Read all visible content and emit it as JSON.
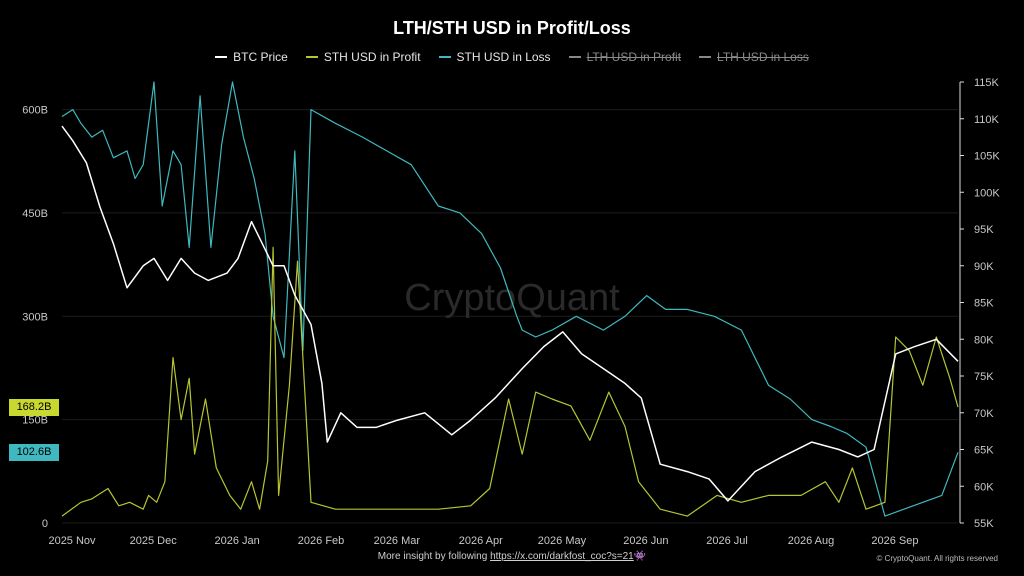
{
  "title": "LTH/STH USD in Profit/Loss",
  "legend": [
    {
      "label": "BTC Price",
      "color": "#ffffff",
      "active": true
    },
    {
      "label": "STH USD in Profit",
      "color": "#b7c531",
      "active": true
    },
    {
      "label": "STH USD in Loss",
      "color": "#3fb8bf",
      "active": true
    },
    {
      "label": "LTH USD in Profit",
      "color": "#888888",
      "active": false
    },
    {
      "label": "LTH USD in Loss",
      "color": "#888888",
      "active": false
    }
  ],
  "watermark": "CryptoQuant",
  "badges": {
    "sth_profit": {
      "text": "168.2B",
      "color": "#c9d82f"
    },
    "sth_loss": {
      "text": "102.6B",
      "color": "#3fb8bf"
    }
  },
  "footer": {
    "text": "More insight by following ",
    "link": "https://x.com/darkfost_coc?s=21",
    "emoji": "👾"
  },
  "copyright": "© CryptoQuant. All rights reserved",
  "chart_data": {
    "type": "line",
    "title": "LTH/STH USD in Profit/Loss",
    "x_ticks": [
      "2025 Nov",
      "2025 Dec",
      "2026 Jan",
      "2026 Feb",
      "2026 Mar",
      "2026 Apr",
      "2026 May",
      "2026 Jun",
      "2026 Jul",
      "2026 Aug",
      "2026 Sep"
    ],
    "x_range": [
      "2025-11-01",
      "2026-09-28"
    ],
    "left_axis": {
      "ticks": [
        "0",
        "150B",
        "300B",
        "450B",
        "600B"
      ],
      "tick_values": [
        0,
        150,
        300,
        450,
        600
      ],
      "range": [
        0,
        640
      ],
      "unit": "B USD"
    },
    "right_axis": {
      "ticks": [
        "55K",
        "60K",
        "65K",
        "70K",
        "75K",
        "80K",
        "85K",
        "90K",
        "95K",
        "100K",
        "105K",
        "110K",
        "115K"
      ],
      "tick_values": [
        55,
        60,
        65,
        70,
        75,
        80,
        85,
        90,
        95,
        100,
        105,
        110,
        115
      ],
      "range": [
        55,
        115
      ],
      "unit": "K USD"
    },
    "series": [
      {
        "name": "BTC Price",
        "axis": "right",
        "color": "#ffffff",
        "x": [
          "2025-11-01",
          "2025-11-05",
          "2025-11-10",
          "2025-11-15",
          "2025-11-20",
          "2025-11-25",
          "2025-12-01",
          "2025-12-05",
          "2025-12-10",
          "2025-12-15",
          "2025-12-20",
          "2025-12-25",
          "2026-01-01",
          "2026-01-05",
          "2026-01-10",
          "2026-01-14",
          "2026-01-18",
          "2026-01-22",
          "2026-01-26",
          "2026-02-01",
          "2026-02-05",
          "2026-02-07",
          "2026-02-12",
          "2026-02-18",
          "2026-02-25",
          "2026-03-05",
          "2026-03-15",
          "2026-03-25",
          "2026-04-01",
          "2026-04-10",
          "2026-04-20",
          "2026-04-28",
          "2026-05-05",
          "2026-05-12",
          "2026-05-20",
          "2026-05-28",
          "2026-06-03",
          "2026-06-10",
          "2026-06-20",
          "2026-06-28",
          "2026-07-05",
          "2026-07-15",
          "2026-07-25",
          "2026-08-05",
          "2026-08-15",
          "2026-08-22",
          "2026-08-28",
          "2026-09-05",
          "2026-09-12",
          "2026-09-20",
          "2026-09-28"
        ],
        "values": [
          109,
          107,
          104,
          98,
          93,
          87,
          90,
          91,
          88,
          91,
          89,
          88,
          89,
          91,
          96,
          93,
          90,
          90,
          86,
          82,
          74,
          66,
          70,
          68,
          68,
          69,
          70,
          67,
          69,
          72,
          76,
          79,
          81,
          78,
          76,
          74,
          72,
          63,
          62,
          61,
          58,
          62,
          64,
          66,
          65,
          64,
          65,
          78,
          79,
          80,
          77
        ]
      },
      {
        "name": "STH USD in Profit",
        "axis": "left",
        "color": "#b7c531",
        "x": [
          "2025-11-01",
          "2025-11-08",
          "2025-11-12",
          "2025-11-18",
          "2025-11-22",
          "2025-11-26",
          "2025-12-01",
          "2025-12-03",
          "2025-12-06",
          "2025-12-09",
          "2025-12-12",
          "2025-12-15",
          "2025-12-18",
          "2025-12-20",
          "2025-12-24",
          "2025-12-28",
          "2026-01-02",
          "2026-01-06",
          "2026-01-10",
          "2026-01-13",
          "2026-01-16",
          "2026-01-18",
          "2026-01-20",
          "2026-01-24",
          "2026-01-27",
          "2026-02-01",
          "2026-02-10",
          "2026-03-01",
          "2026-03-20",
          "2026-04-01",
          "2026-04-08",
          "2026-04-15",
          "2026-04-20",
          "2026-04-25",
          "2026-05-01",
          "2026-05-08",
          "2026-05-15",
          "2026-05-22",
          "2026-05-28",
          "2026-06-02",
          "2026-06-10",
          "2026-06-20",
          "2026-07-01",
          "2026-07-10",
          "2026-07-20",
          "2026-08-01",
          "2026-08-10",
          "2026-08-15",
          "2026-08-20",
          "2026-08-25",
          "2026-09-01",
          "2026-09-05",
          "2026-09-10",
          "2026-09-15",
          "2026-09-20",
          "2026-09-25",
          "2026-09-28"
        ],
        "values": [
          10,
          30,
          35,
          50,
          25,
          30,
          20,
          40,
          30,
          60,
          240,
          150,
          210,
          100,
          180,
          80,
          40,
          20,
          60,
          20,
          90,
          400,
          40,
          200,
          380,
          30,
          20,
          20,
          20,
          25,
          50,
          180,
          100,
          190,
          180,
          170,
          120,
          190,
          140,
          60,
          20,
          10,
          40,
          30,
          40,
          40,
          60,
          30,
          80,
          20,
          30,
          270,
          250,
          200,
          270,
          210,
          168.2
        ]
      },
      {
        "name": "STH USD in Loss",
        "axis": "left",
        "color": "#3fb8bf",
        "x": [
          "2025-11-01",
          "2025-11-05",
          "2025-11-08",
          "2025-11-12",
          "2025-11-16",
          "2025-11-20",
          "2025-11-25",
          "2025-11-28",
          "2025-12-01",
          "2025-12-05",
          "2025-12-08",
          "2025-12-12",
          "2025-12-15",
          "2025-12-18",
          "2025-12-22",
          "2025-12-26",
          "2025-12-30",
          "2026-01-03",
          "2026-01-07",
          "2026-01-11",
          "2026-01-15",
          "2026-01-18",
          "2026-01-22",
          "2026-01-26",
          "2026-01-29",
          "2026-02-01",
          "2026-02-10",
          "2026-02-20",
          "2026-03-01",
          "2026-03-10",
          "2026-03-20",
          "2026-03-28",
          "2026-04-05",
          "2026-04-12",
          "2026-04-18",
          "2026-04-20",
          "2026-04-25",
          "2026-05-01",
          "2026-05-10",
          "2026-05-20",
          "2026-05-28",
          "2026-06-05",
          "2026-06-12",
          "2026-06-20",
          "2026-06-30",
          "2026-07-10",
          "2026-07-20",
          "2026-07-28",
          "2026-08-05",
          "2026-08-12",
          "2026-08-18",
          "2026-08-25",
          "2026-09-01",
          "2026-09-08",
          "2026-09-15",
          "2026-09-22",
          "2026-09-28"
        ],
        "values": [
          590,
          600,
          580,
          560,
          570,
          530,
          540,
          500,
          520,
          640,
          460,
          540,
          520,
          400,
          620,
          400,
          550,
          640,
          560,
          500,
          420,
          300,
          240,
          540,
          250,
          600,
          580,
          560,
          540,
          520,
          460,
          450,
          420,
          370,
          300,
          280,
          270,
          280,
          300,
          280,
          300,
          330,
          310,
          310,
          300,
          280,
          200,
          180,
          150,
          140,
          130,
          110,
          10,
          20,
          30,
          40,
          102.6
        ]
      }
    ]
  }
}
